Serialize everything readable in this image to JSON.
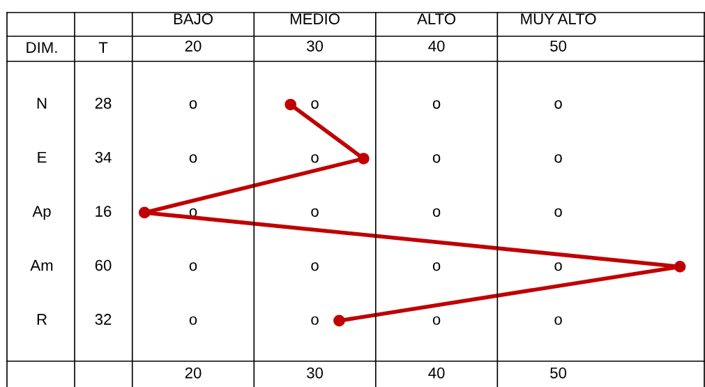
{
  "chart_data": {
    "type": "line",
    "orientation": "horizontal",
    "categories": [
      "N",
      "E",
      "Ap",
      "Am",
      "R"
    ],
    "values": [
      28,
      34,
      16,
      60,
      32
    ],
    "color": "#c00000",
    "marker": "circle",
    "line_style": "solid",
    "xlim": [
      4.7,
      62
    ],
    "xticks": [
      20,
      30,
      40,
      50
    ],
    "x2lim": [
      4.7,
      62
    ],
    "x2ticks": [
      20,
      30,
      40,
      50
    ],
    "annotations": [
      "BAJO",
      "MEDIO",
      "ALTO",
      "MUY ALTO",
      "DIM.",
      "T",
      "28",
      "34",
      "16",
      "60",
      "32",
      "o",
      "o",
      "o",
      "o",
      "o",
      "o",
      "o",
      "o",
      "o",
      "o",
      "o",
      "o",
      "o",
      "o",
      "o",
      "o",
      "o",
      "o",
      "o",
      "o"
    ]
  }
}
